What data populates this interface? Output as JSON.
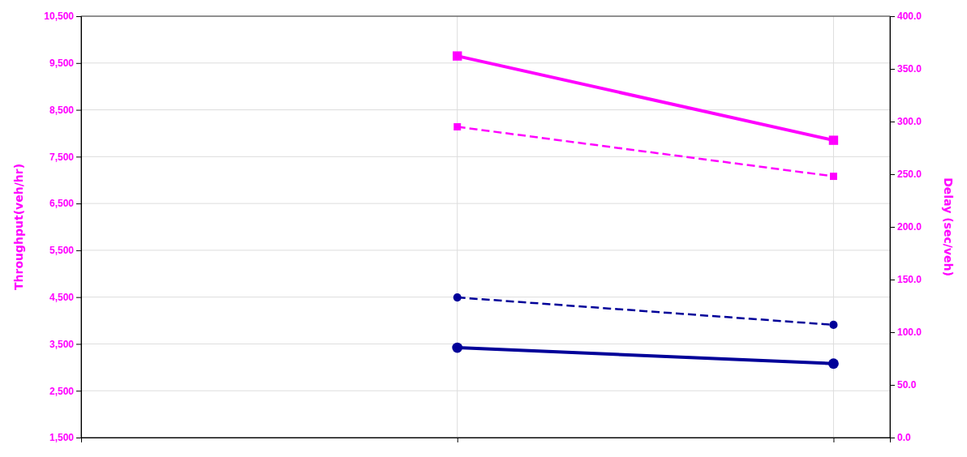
{
  "chart_data": {
    "type": "line",
    "x": [
      1,
      2
    ],
    "xlim": [
      0.0,
      2.15
    ],
    "xticks": [
      0,
      1,
      2
    ],
    "ylim": [
      1500,
      10500
    ],
    "yticks": [
      {
        "value": 1500,
        "label": "1,500"
      },
      {
        "value": 2500,
        "label": "2,500"
      },
      {
        "value": 3500,
        "label": "3,500"
      },
      {
        "value": 4500,
        "label": "4,500"
      },
      {
        "value": 5500,
        "label": "5,500"
      },
      {
        "value": 6500,
        "label": "6,500"
      },
      {
        "value": 7500,
        "label": "7,500"
      },
      {
        "value": 8500,
        "label": "8,500"
      },
      {
        "value": 9500,
        "label": "9,500"
      },
      {
        "value": 10500,
        "label": "10,500"
      }
    ],
    "y2lim": [
      0.0,
      400.0
    ],
    "y2ticks": [
      {
        "value": 0.0,
        "label": "0.0"
      },
      {
        "value": 50.0,
        "label": "50.0"
      },
      {
        "value": 100.0,
        "label": "100.0"
      },
      {
        "value": 150.0,
        "label": "150.0"
      },
      {
        "value": 200.0,
        "label": "200.0"
      },
      {
        "value": 250.0,
        "label": "250.0"
      },
      {
        "value": 300.0,
        "label": "300.0"
      },
      {
        "value": 350.0,
        "label": "350.0"
      },
      {
        "value": 400.0,
        "label": "400.0"
      }
    ],
    "y_label": "Throughput(veh/hr)",
    "y2_label": "Delay (sec/veh)",
    "grid": true,
    "tick_labels": "y",
    "series": [
      {
        "color": "#FF00FF",
        "values": [
          9650,
          7850
        ],
        "marker": "square",
        "line_style": "solid"
      },
      {
        "color": "#FF00FF",
        "values": [
          295.0,
          248.0
        ],
        "marker": "square",
        "line_style": "dashed",
        "axis": "y2"
      },
      {
        "color": "#000099",
        "values": [
          3420,
          3080
        ],
        "marker": "circle",
        "line_style": "solid"
      },
      {
        "color": "#000099",
        "values": [
          133.0,
          107.0
        ],
        "marker": "circle",
        "line_style": "dashed",
        "axis": "y2"
      }
    ]
  }
}
